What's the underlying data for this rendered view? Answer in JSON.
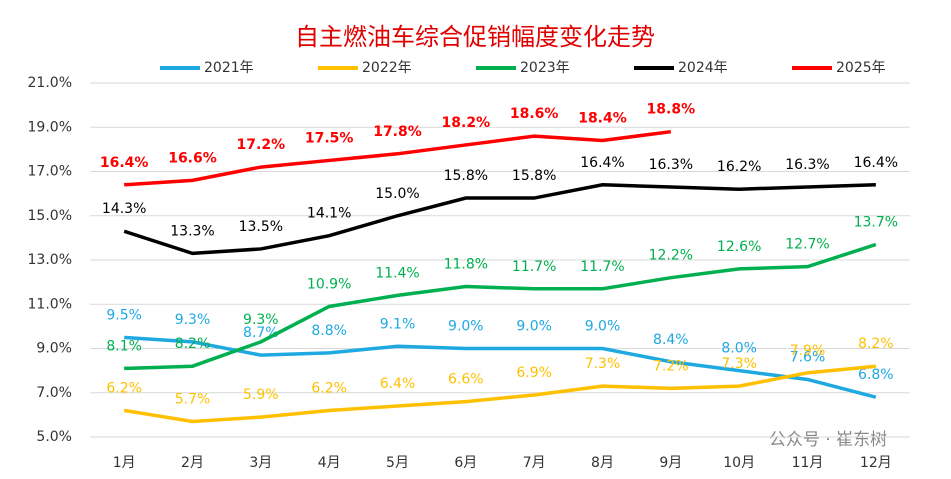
{
  "chart_data": {
    "type": "line",
    "title": "自主燃油车综合促销幅度变化走势",
    "categories": [
      "1月",
      "2月",
      "3月",
      "4月",
      "5月",
      "6月",
      "7月",
      "8月",
      "9月",
      "10月",
      "11月",
      "12月"
    ],
    "series": [
      {
        "name": "2021年",
        "color": "#1ea9e1",
        "values": [
          9.5,
          9.3,
          8.7,
          8.8,
          9.1,
          9.0,
          9.0,
          9.0,
          8.4,
          8.0,
          7.6,
          6.8
        ],
        "value_labels": [
          "9.5%",
          "9.3%",
          "8.7%",
          "8.8%",
          "9.1%",
          "9.0%",
          "9.0%",
          "9.0%",
          "8.4%",
          "8.0%",
          "7.6%",
          "6.8%"
        ]
      },
      {
        "name": "2022年",
        "color": "#ffc000",
        "values": [
          6.2,
          5.7,
          5.9,
          6.2,
          6.4,
          6.6,
          6.9,
          7.3,
          7.2,
          7.3,
          7.9,
          8.2
        ],
        "value_labels": [
          "6.2%",
          "5.7%",
          "5.9%",
          "6.2%",
          "6.4%",
          "6.6%",
          "6.9%",
          "7.3%",
          "7.2%",
          "7.3%",
          "7.9%",
          "8.2%"
        ]
      },
      {
        "name": "2023年",
        "color": "#00b050",
        "values": [
          8.1,
          8.2,
          9.3,
          10.9,
          11.4,
          11.8,
          11.7,
          11.7,
          12.2,
          12.6,
          12.7,
          13.7
        ],
        "value_labels": [
          "8.1%",
          "8.2%",
          "9.3%",
          "10.9%",
          "11.4%",
          "11.8%",
          "11.7%",
          "11.7%",
          "12.2%",
          "12.6%",
          "12.7%",
          "13.7%"
        ]
      },
      {
        "name": "2024年",
        "color": "#000000",
        "values": [
          14.3,
          13.3,
          13.5,
          14.1,
          15.0,
          15.8,
          15.8,
          16.4,
          16.3,
          16.2,
          16.3,
          16.4
        ],
        "value_labels": [
          "14.3%",
          "13.3%",
          "13.5%",
          "14.1%",
          "15.0%",
          "15.8%",
          "15.8%",
          "16.4%",
          "16.3%",
          "16.2%",
          "16.3%",
          "16.4%"
        ]
      },
      {
        "name": "2025年",
        "color": "#ff0000",
        "values": [
          16.4,
          16.6,
          17.2,
          17.5,
          17.8,
          18.2,
          18.6,
          18.4,
          18.8,
          null,
          null,
          null
        ],
        "value_labels": [
          "16.4%",
          "16.6%",
          "17.2%",
          "17.5%",
          "17.8%",
          "18.2%",
          "18.6%",
          "18.4%",
          "18.8%",
          null,
          null,
          null
        ]
      }
    ],
    "ylim": [
      5,
      21
    ],
    "yticks": [
      {
        "value": 5,
        "label": "5.0%"
      },
      {
        "value": 7,
        "label": "7.0%"
      },
      {
        "value": 9,
        "label": "9.0%"
      },
      {
        "value": 11,
        "label": "11.0%"
      },
      {
        "value": 13,
        "label": "13.0%"
      },
      {
        "value": 15,
        "label": "15.0%"
      },
      {
        "value": 17,
        "label": "17.0%"
      },
      {
        "value": 19,
        "label": "19.0%"
      },
      {
        "value": 21,
        "label": "21.0%"
      }
    ],
    "grid": true,
    "legend": "top",
    "watermark": "公众号 · 崔东树"
  }
}
